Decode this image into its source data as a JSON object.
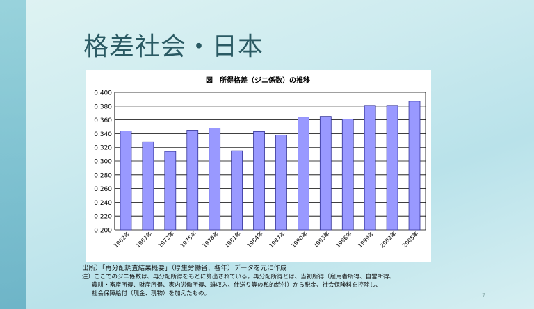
{
  "slide": {
    "title": "格差社会・日本",
    "page_number": "7"
  },
  "chart_data": {
    "type": "bar",
    "title": "図　所得格差（ジニ係数）の推移",
    "categories": [
      "1962年",
      "1967年",
      "1972年",
      "1975年",
      "1978年",
      "1981年",
      "1984年",
      "1987年",
      "1990年",
      "1993年",
      "1996年",
      "1999年",
      "2002年",
      "2005年"
    ],
    "values": [
      0.344,
      0.328,
      0.314,
      0.345,
      0.348,
      0.315,
      0.343,
      0.338,
      0.364,
      0.365,
      0.361,
      0.381,
      0.381,
      0.387
    ],
    "ylim": [
      0.2,
      0.4
    ],
    "yticks": [
      "0.200",
      "0.220",
      "0.240",
      "0.260",
      "0.280",
      "0.300",
      "0.320",
      "0.340",
      "0.360",
      "0.380",
      "0.400"
    ],
    "grid": true,
    "bar_color": "#9999ff"
  },
  "notes": {
    "source": "出所）「再分配調査結果概要」（厚生労働省、各年）データを元に作成",
    "note1": "注）ここでのジニ係数は、再分配所得をもとに算出されている。再分配所得とは、当初所得（雇用者所得、自営所得、",
    "note2": "農耕・畜産所得、財産所得、家内労働所得、雑収入、仕送り等の私的給付）から税金、社会保険料を控除し、",
    "note3": "社会保障給付（現金、現物）を加えたもの。"
  }
}
